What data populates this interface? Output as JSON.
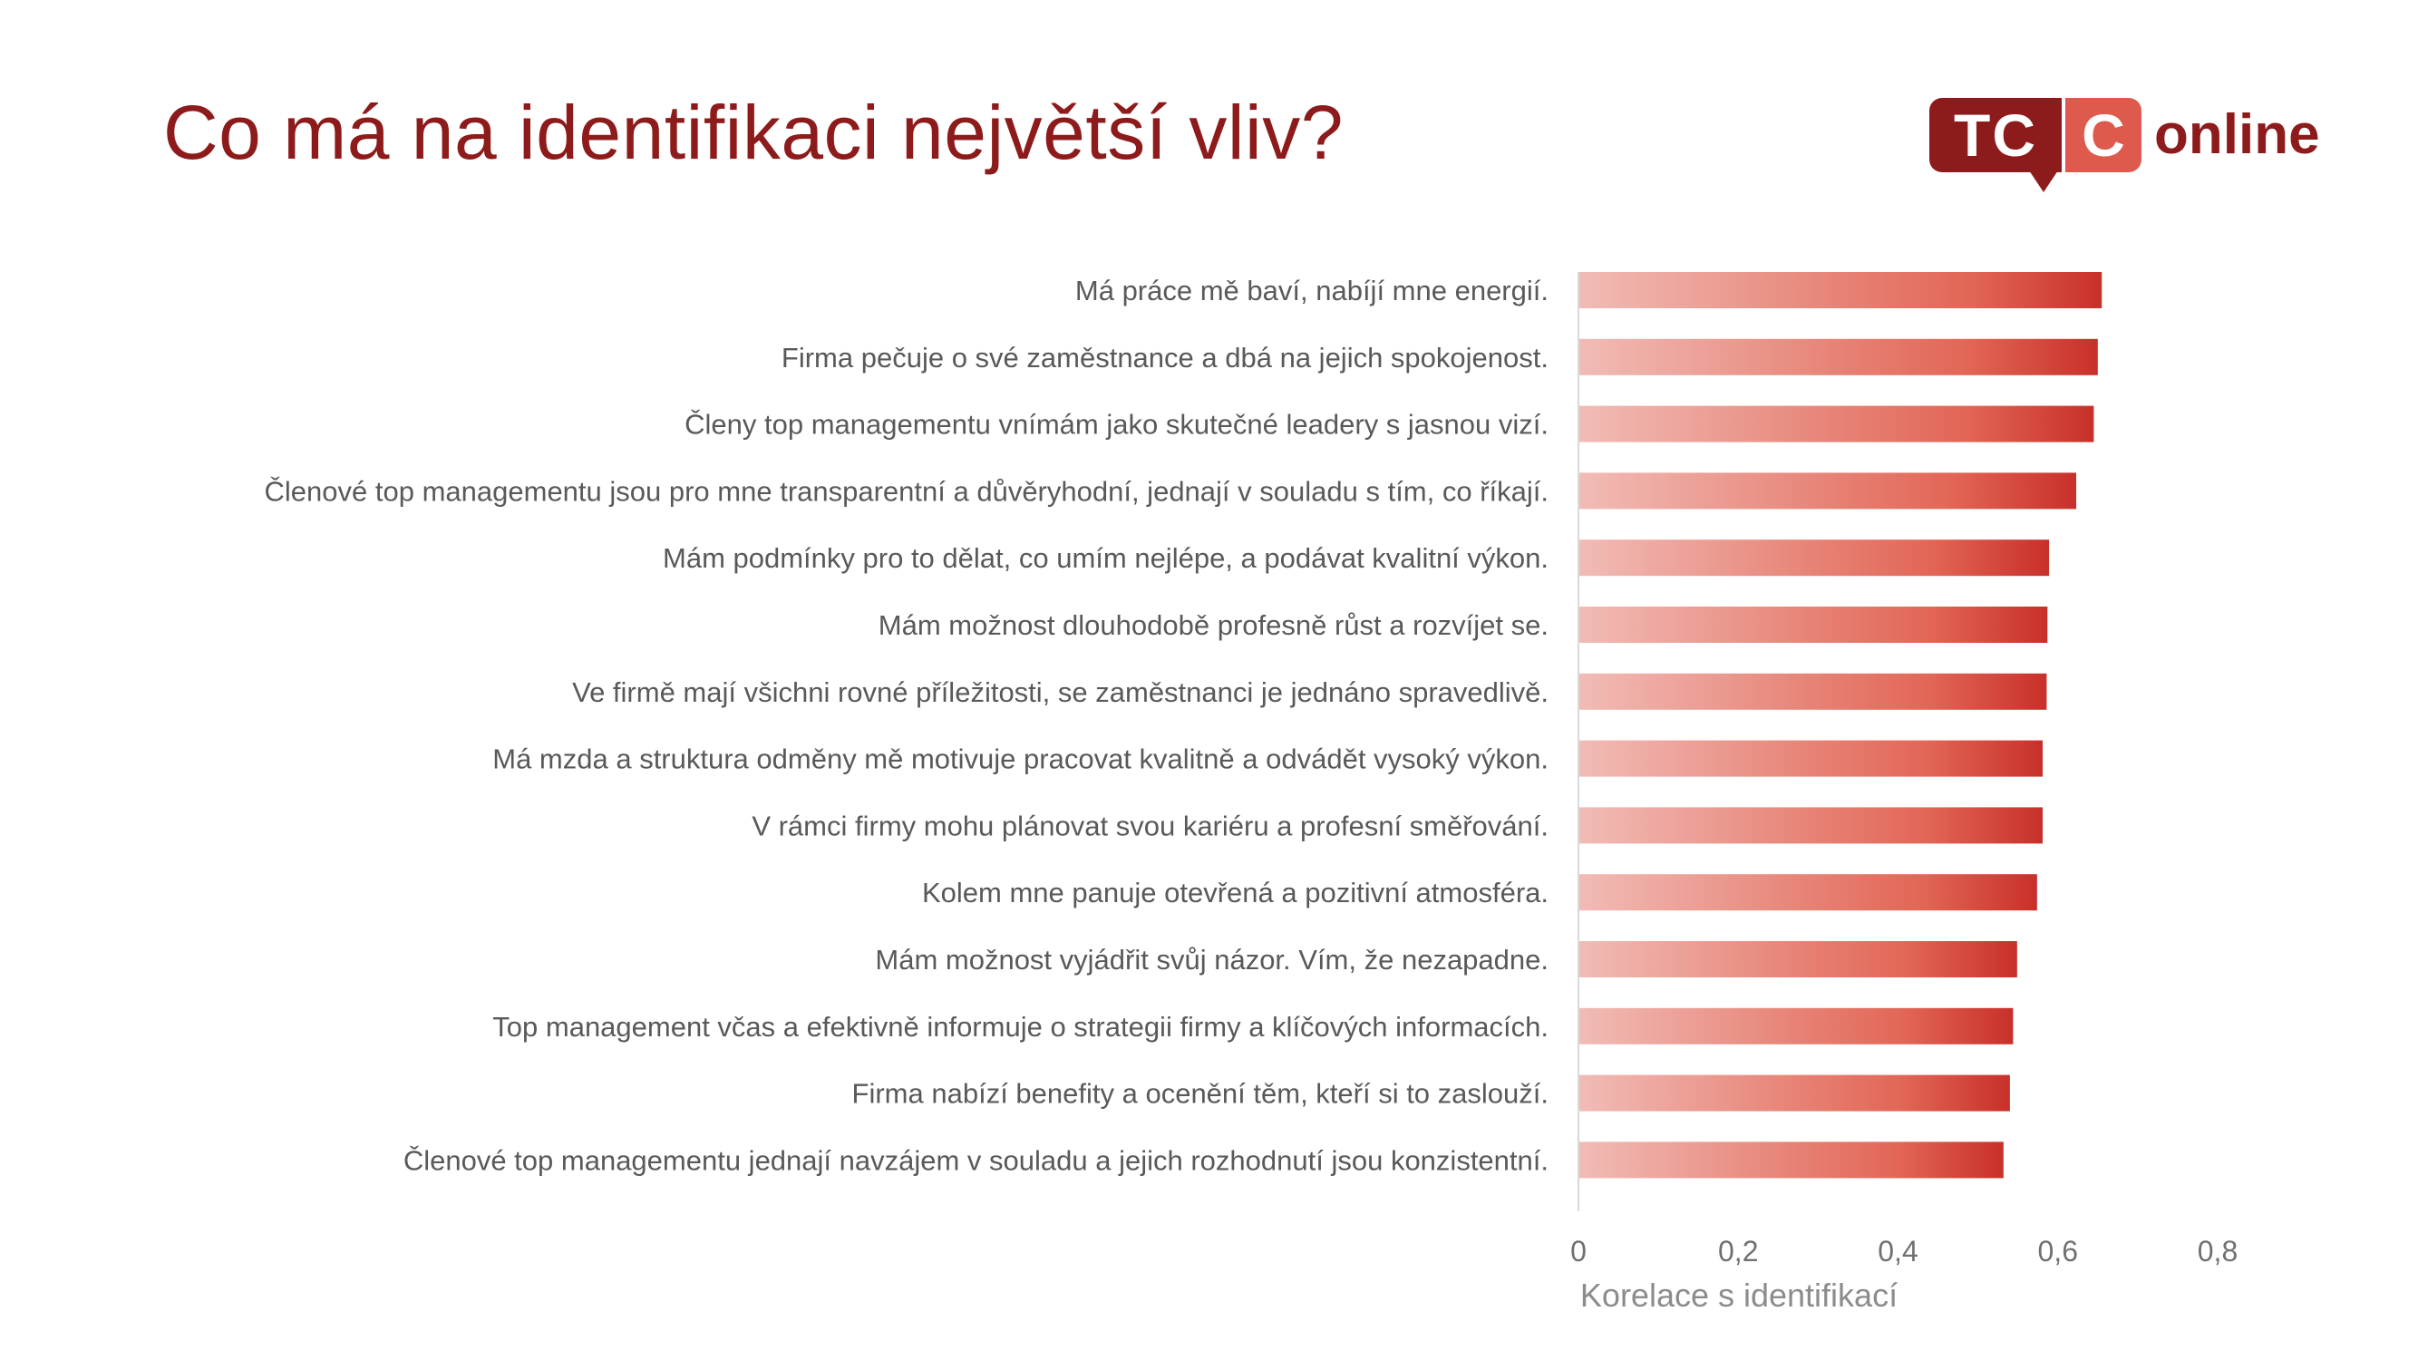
{
  "title": "Co má na identifikaci největší vliv?",
  "logo": {
    "tc": "TC",
    "c": "C",
    "word": "online"
  },
  "colors": {
    "title": "#8e1b1b",
    "bar_start": "#f1bcb6",
    "bar_end": "#c8302a",
    "logo_dark": "#8e1b1b",
    "logo_light": "#dd5a4c"
  },
  "chart_data": {
    "type": "bar",
    "orientation": "horizontal",
    "categories": [
      "Má práce mě baví, nabíjí mne energií.",
      "Firma pečuje o své zaměstnance a dbá na jejich spokojenost.",
      "Členy top managementu vnímám jako skutečné leadery s jasnou vizí.",
      "Členové top managementu jsou pro mne transparentní a důvěryhodní, jednají v souladu s tím, co říkají.",
      "Mám podmínky pro to dělat, co umím nejlépe, a podávat kvalitní výkon.",
      "Mám možnost dlouhodobě profesně růst a rozvíjet se.",
      "Ve firmě mají všichni rovné příležitosti, se zaměstnanci je jednáno spravedlivě.",
      "Má mzda a struktura odměny mě motivuje pracovat kvalitně a odvádět vysoký výkon.",
      "V rámci firmy mohu plánovat svou kariéru a profesní směřování.",
      "Kolem mne panuje otevřená a pozitivní atmosféra.",
      "Mám možnost vyjádřit svůj názor. Vím, že nezapadne.",
      "Top management včas a efektivně informuje o strategii firmy a klíčových informacích.",
      "Firma nabízí benefity a ocenění těm, kteří si to zaslouží.",
      "Členové top managementu jednají navzájem v souladu a jejich rozhodnutí jsou konzistentní."
    ],
    "values": [
      0.655,
      0.65,
      0.645,
      0.623,
      0.589,
      0.587,
      0.586,
      0.581,
      0.581,
      0.574,
      0.549,
      0.544,
      0.54,
      0.532
    ],
    "xlim": [
      0,
      0.8
    ],
    "xticks": [
      "0",
      "0,2",
      "0,4",
      "0,6",
      "0,8"
    ],
    "xlabel": "Korelace s identifikací",
    "grid": false
  }
}
